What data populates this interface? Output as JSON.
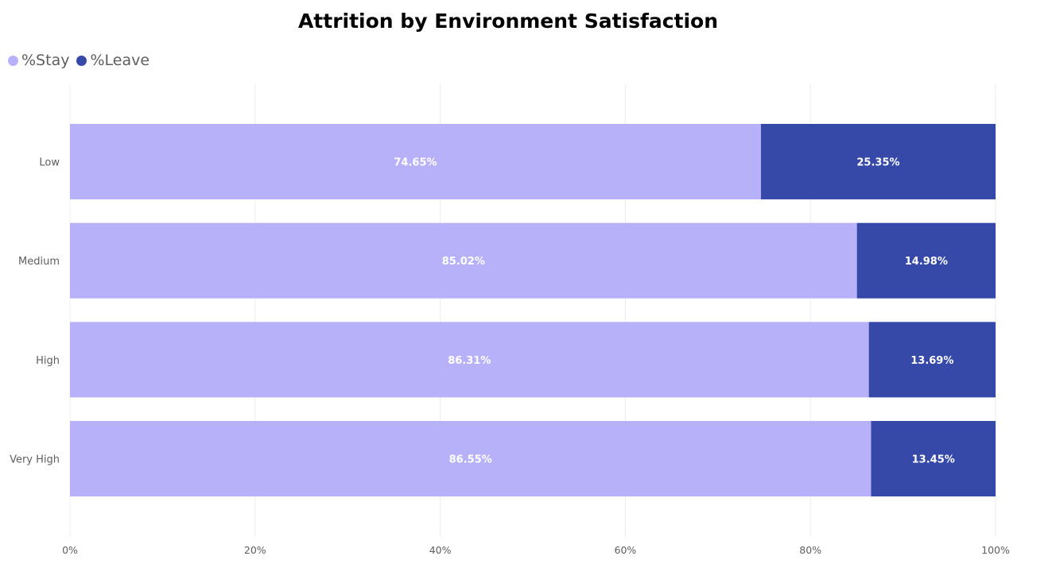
{
  "chart_data": {
    "type": "bar",
    "orientation": "horizontal",
    "stacked": true,
    "title": "Attrition by Environment Satisfaction",
    "categories": [
      "Low",
      "Medium",
      "High",
      "Very High"
    ],
    "series": [
      {
        "name": "%Stay",
        "color": "#b7b1f9",
        "values": [
          74.65,
          85.02,
          86.31,
          86.55
        ],
        "labels": [
          "74.65%",
          "85.02%",
          "86.31%",
          "86.55%"
        ]
      },
      {
        "name": "%Leave",
        "color": "#3649a8",
        "values": [
          25.35,
          14.98,
          13.69,
          13.45
        ],
        "labels": [
          "25.35%",
          "14.98%",
          "13.69%",
          "13.45%"
        ]
      }
    ],
    "x_ticks": [
      0,
      20,
      40,
      60,
      80,
      100
    ],
    "x_tick_labels": [
      "0%",
      "20%",
      "40%",
      "60%",
      "80%",
      "100%"
    ],
    "xlim": [
      0,
      100
    ],
    "xlabel": "",
    "ylabel": "",
    "grid": true,
    "legend_position": "top-left"
  }
}
